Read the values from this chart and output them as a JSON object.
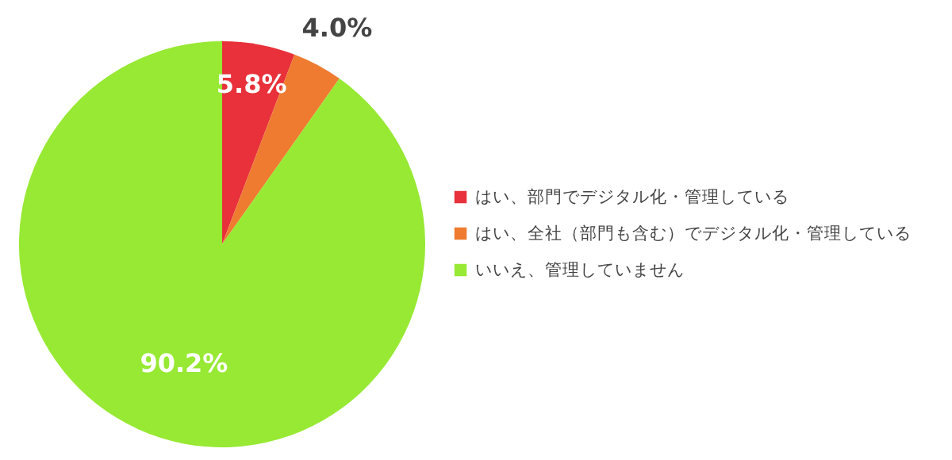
{
  "chart_data": {
    "type": "pie",
    "categories": [
      "はい、部門でデジタル化・管理している",
      "はい、全社（部門も含む）でデジタル化・管理している",
      "いいえ、管理していません"
    ],
    "values": [
      5.8,
      4.0,
      90.2
    ],
    "colors": [
      "#e8313a",
      "#ee7b30",
      "#97e933"
    ],
    "value_labels": [
      "5.8%",
      "4.0%",
      "90.2%"
    ],
    "legend": "right"
  }
}
